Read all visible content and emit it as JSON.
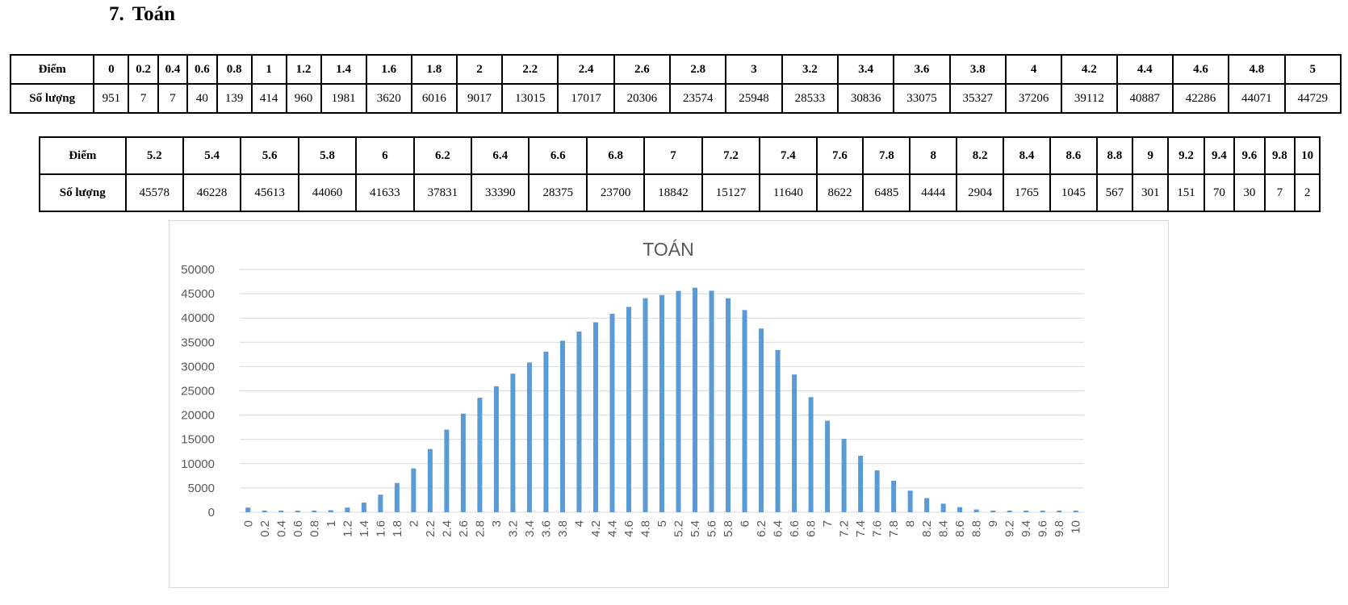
{
  "heading": {
    "number": "7.",
    "title": "Toán"
  },
  "table1": {
    "row1_label": "Điểm",
    "row2_label": "Số lượng",
    "scores": [
      "0",
      "0.2",
      "0.4",
      "0.6",
      "0.8",
      "1",
      "1.2",
      "1.4",
      "1.6",
      "1.8",
      "2",
      "2.2",
      "2.4",
      "2.6",
      "2.8",
      "3",
      "3.2",
      "3.4",
      "3.6",
      "3.8",
      "4",
      "4.2",
      "4.4",
      "4.6",
      "4.8",
      "5"
    ],
    "counts": [
      "951",
      "7",
      "7",
      "40",
      "139",
      "414",
      "960",
      "1981",
      "3620",
      "6016",
      "9017",
      "13015",
      "17017",
      "20306",
      "23574",
      "25948",
      "28533",
      "30836",
      "33075",
      "35327",
      "37206",
      "39112",
      "40887",
      "42286",
      "44071",
      "44729"
    ]
  },
  "table2": {
    "row1_label": "Điểm",
    "row2_label": "Số lượng",
    "scores": [
      "5.2",
      "5.4",
      "5.6",
      "5.8",
      "6",
      "6.2",
      "6.4",
      "6.6",
      "6.8",
      "7",
      "7.2",
      "7.4",
      "7.6",
      "7.8",
      "8",
      "8.2",
      "8.4",
      "8.6",
      "8.8",
      "9",
      "9.2",
      "9.4",
      "9.6",
      "9.8",
      "10"
    ],
    "counts": [
      "45578",
      "46228",
      "45613",
      "44060",
      "41633",
      "37831",
      "33390",
      "28375",
      "23700",
      "18842",
      "15127",
      "11640",
      "8622",
      "6485",
      "4444",
      "2904",
      "1765",
      "1045",
      "567",
      "301",
      "151",
      "70",
      "30",
      "7",
      "2"
    ]
  },
  "colors": {
    "bar": "#5b9bd5",
    "grid": "#d9d9d9",
    "axis_text": "#595959"
  },
  "chart_data": {
    "type": "bar",
    "title": "TOÁN",
    "xlabel": "",
    "ylabel": "",
    "ylim": [
      0,
      50000
    ],
    "yticks": [
      0,
      5000,
      10000,
      15000,
      20000,
      25000,
      30000,
      35000,
      40000,
      45000,
      50000
    ],
    "grid": true,
    "legend": "none",
    "categories": [
      "0",
      "0.2",
      "0.4",
      "0.6",
      "0.8",
      "1",
      "1.2",
      "1.4",
      "1.6",
      "1.8",
      "2",
      "2.2",
      "2.4",
      "2.6",
      "2.8",
      "3",
      "3.2",
      "3.4",
      "3.6",
      "3.8",
      "4",
      "4.2",
      "4.4",
      "4.6",
      "4.8",
      "5",
      "5.2",
      "5.4",
      "5.6",
      "5.8",
      "6",
      "6.2",
      "6.4",
      "6.6",
      "6.8",
      "7",
      "7.2",
      "7.4",
      "7.6",
      "7.8",
      "8",
      "8.2",
      "8.4",
      "8.6",
      "8.8",
      "9",
      "9.2",
      "9.4",
      "9.6",
      "9.8",
      "10"
    ],
    "values": [
      951,
      7,
      7,
      40,
      139,
      414,
      960,
      1981,
      3620,
      6016,
      9017,
      13015,
      17017,
      20306,
      23574,
      25948,
      28533,
      30836,
      33075,
      35327,
      37206,
      39112,
      40887,
      42286,
      44071,
      44729,
      45578,
      46228,
      45613,
      44060,
      41633,
      37831,
      33390,
      28375,
      23700,
      18842,
      15127,
      11640,
      8622,
      6485,
      4444,
      2904,
      1765,
      1045,
      567,
      301,
      151,
      70,
      30,
      7,
      2
    ]
  }
}
